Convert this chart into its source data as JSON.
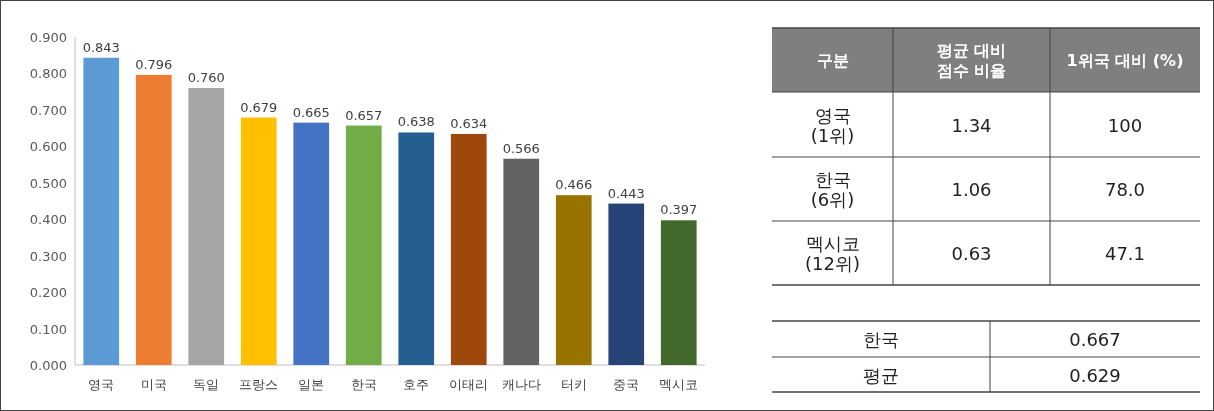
{
  "chart_data": [
    {
      "type": "bar",
      "categories": [
        "영국",
        "미국",
        "독일",
        "프랑스",
        "일본",
        "한국",
        "호주",
        "이태리",
        "캐나다",
        "터키",
        "중국",
        "멕시코"
      ],
      "values": [
        0.843,
        0.796,
        0.76,
        0.679,
        0.665,
        0.657,
        0.638,
        0.634,
        0.566,
        0.466,
        0.443,
        0.397
      ],
      "value_labels": [
        "0.843",
        "0.796",
        "0.760",
        "0.679",
        "0.665",
        "0.657",
        "0.638",
        "0.634",
        "0.566",
        "0.466",
        "0.443",
        "0.397"
      ],
      "colors": [
        "#5b9bd5",
        "#ed7d31",
        "#a5a5a5",
        "#ffc000",
        "#4472c4",
        "#70ad47",
        "#255e91",
        "#9e480e",
        "#636363",
        "#997300",
        "#264478",
        "#43682b"
      ],
      "ylim": [
        0,
        0.9
      ],
      "yticks": [
        {
          "value": 0,
          "label": "0.000"
        },
        {
          "value": 0.1,
          "label": "0.100"
        },
        {
          "value": 0.2,
          "label": "0.200"
        },
        {
          "value": 0.3,
          "label": "0.300"
        },
        {
          "value": 0.4,
          "label": "0.400"
        },
        {
          "value": 0.5,
          "label": "0.500"
        },
        {
          "value": 0.6,
          "label": "0.600"
        },
        {
          "value": 0.7,
          "label": "0.700"
        },
        {
          "value": 0.8,
          "label": "0.800"
        },
        {
          "value": 0.9,
          "label": "0.900"
        }
      ],
      "grid": false
    },
    {
      "type": "other",
      "annotations": [
        "구분",
        "평균 대비\n점수 비율",
        "1위국 대비 (%)",
        "영국\n(1위)",
        "1.34",
        "100",
        "한국\n(6위)",
        "1.06",
        "78.0",
        "멕시코\n(12위)",
        "0.63",
        "47.1",
        "한국",
        "0.667",
        "평균",
        "0.629"
      ]
    }
  ]
}
